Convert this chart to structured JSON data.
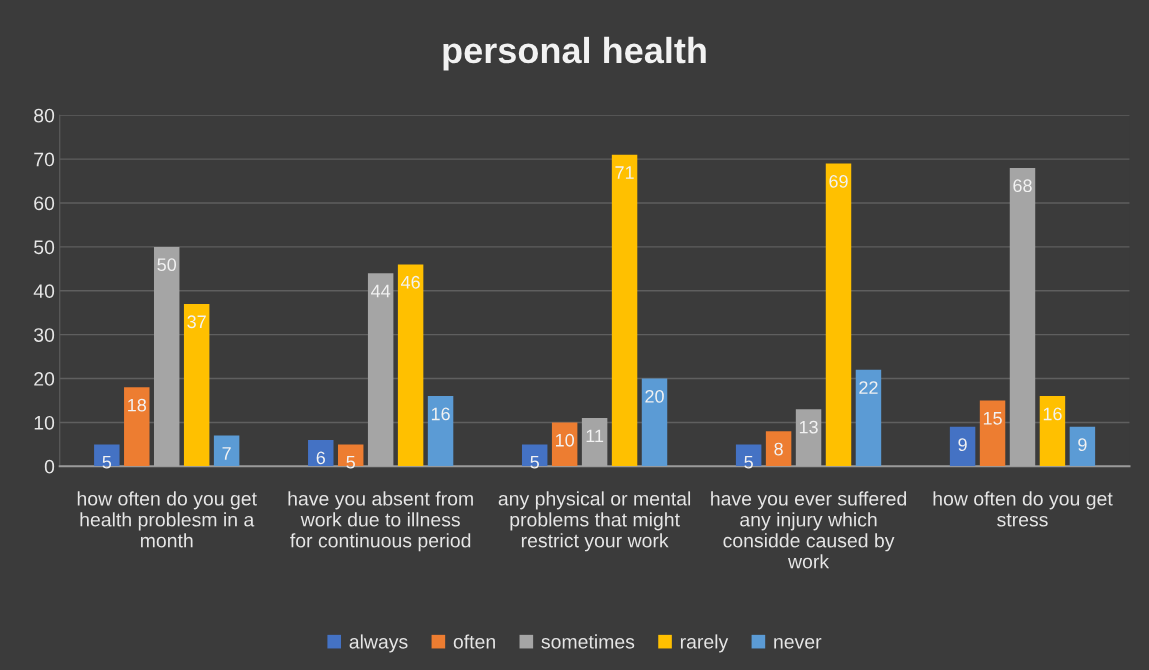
{
  "chart_data": {
    "type": "bar",
    "title": "personal health",
    "categories": [
      "how often do you get health problesm in a month",
      "have you absent from work due to illness for continuous period",
      "any physical or mental problems that might restrict your work",
      "have you ever suffered any injury which considde caused by work",
      "how often do you get stress"
    ],
    "series": [
      {
        "name": "always",
        "color": "#4472c4",
        "values": [
          5,
          6,
          5,
          5,
          9
        ]
      },
      {
        "name": "often",
        "color": "#ed7d31",
        "values": [
          18,
          5,
          10,
          8,
          15
        ]
      },
      {
        "name": "sometimes",
        "color": "#a5a5a5",
        "values": [
          50,
          44,
          11,
          13,
          68
        ]
      },
      {
        "name": "rarely",
        "color": "#ffc000",
        "values": [
          37,
          46,
          71,
          69,
          16
        ]
      },
      {
        "name": "never",
        "color": "#5b9bd5",
        "values": [
          7,
          16,
          20,
          22,
          9
        ]
      }
    ],
    "ylim": [
      0,
      80
    ],
    "yticks": [
      0,
      10,
      20,
      30,
      40,
      50,
      60,
      70,
      80
    ],
    "grid": "y",
    "legend": "bottom",
    "data_labels": true
  }
}
